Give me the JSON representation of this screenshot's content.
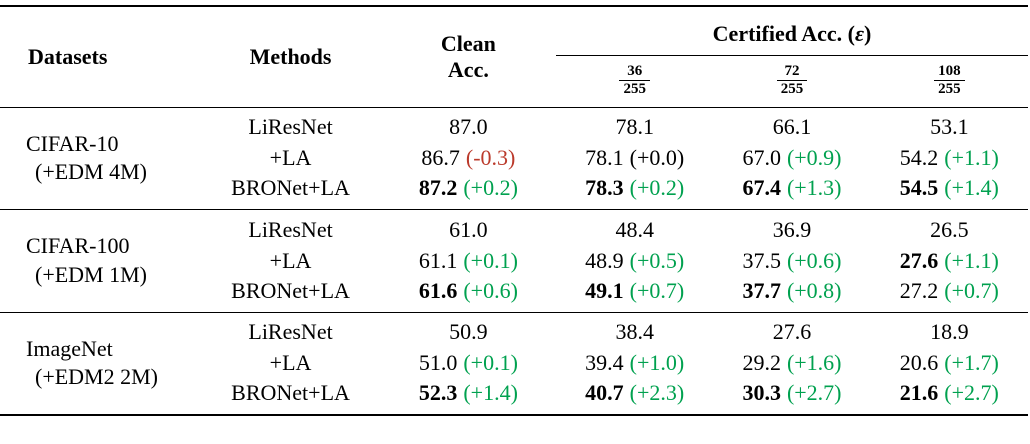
{
  "colors": {
    "green": "#00a14f",
    "red": "#bb3a2b",
    "rule": "#000000"
  },
  "header": {
    "datasets": "Datasets",
    "methods": "Methods",
    "clean_line1": "Clean",
    "clean_line2": "Acc.",
    "certified": {
      "prefix": "Certified Acc. (",
      "epsilon_symbol": "ε",
      "suffix": ")"
    },
    "epsilons": [
      {
        "num": "36",
        "den": "255"
      },
      {
        "num": "72",
        "den": "255"
      },
      {
        "num": "108",
        "den": "255"
      }
    ]
  },
  "groups": [
    {
      "dataset_line1": "CIFAR-10",
      "dataset_line2": "(+EDM 4M)",
      "rows": [
        {
          "method": "LiResNet",
          "cells": [
            {
              "v": "87.0"
            },
            {
              "v": "78.1"
            },
            {
              "v": "66.1"
            },
            {
              "v": "53.1"
            }
          ]
        },
        {
          "method": "+LA",
          "cells": [
            {
              "v": "86.7",
              "d": "(-0.3)",
              "c": "red"
            },
            {
              "v": "78.1",
              "d": "(+0.0)",
              "c": "plain"
            },
            {
              "v": "67.0",
              "d": "(+0.9)",
              "c": "green"
            },
            {
              "v": "54.2",
              "d": "(+1.1)",
              "c": "green"
            }
          ]
        },
        {
          "method": "BRONet+LA",
          "cells": [
            {
              "v": "87.2",
              "bold": true,
              "d": "(+0.2)",
              "c": "green"
            },
            {
              "v": "78.3",
              "bold": true,
              "d": "(+0.2)",
              "c": "green"
            },
            {
              "v": "67.4",
              "bold": true,
              "d": "(+1.3)",
              "c": "green"
            },
            {
              "v": "54.5",
              "bold": true,
              "d": "(+1.4)",
              "c": "green"
            }
          ]
        }
      ]
    },
    {
      "dataset_line1": "CIFAR-100",
      "dataset_line2": "(+EDM 1M)",
      "rows": [
        {
          "method": "LiResNet",
          "cells": [
            {
              "v": "61.0"
            },
            {
              "v": "48.4"
            },
            {
              "v": "36.9"
            },
            {
              "v": "26.5"
            }
          ]
        },
        {
          "method": "+LA",
          "cells": [
            {
              "v": "61.1",
              "d": "(+0.1)",
              "c": "green"
            },
            {
              "v": "48.9",
              "d": "(+0.5)",
              "c": "green"
            },
            {
              "v": "37.5",
              "d": "(+0.6)",
              "c": "green"
            },
            {
              "v": "27.6",
              "bold": true,
              "d": "(+1.1)",
              "c": "green"
            }
          ]
        },
        {
          "method": "BRONet+LA",
          "cells": [
            {
              "v": "61.6",
              "bold": true,
              "d": "(+0.6)",
              "c": "green"
            },
            {
              "v": "49.1",
              "bold": true,
              "d": "(+0.7)",
              "c": "green"
            },
            {
              "v": "37.7",
              "bold": true,
              "d": "(+0.8)",
              "c": "green"
            },
            {
              "v": "27.2",
              "d": "(+0.7)",
              "c": "green"
            }
          ]
        }
      ]
    },
    {
      "dataset_line1": "ImageNet",
      "dataset_line2": "(+EDM2 2M)",
      "rows": [
        {
          "method": "LiResNet",
          "cells": [
            {
              "v": "50.9"
            },
            {
              "v": "38.4"
            },
            {
              "v": "27.6"
            },
            {
              "v": "18.9"
            }
          ]
        },
        {
          "method": "+LA",
          "cells": [
            {
              "v": "51.0",
              "d": "(+0.1)",
              "c": "green"
            },
            {
              "v": "39.4",
              "d": "(+1.0)",
              "c": "green"
            },
            {
              "v": "29.2",
              "d": "(+1.6)",
              "c": "green"
            },
            {
              "v": "20.6",
              "d": "(+1.7)",
              "c": "green"
            }
          ]
        },
        {
          "method": "BRONet+LA",
          "cells": [
            {
              "v": "52.3",
              "bold": true,
              "d": "(+1.4)",
              "c": "green"
            },
            {
              "v": "40.7",
              "bold": true,
              "d": "(+2.3)",
              "c": "green"
            },
            {
              "v": "30.3",
              "bold": true,
              "d": "(+2.7)",
              "c": "green"
            },
            {
              "v": "21.6",
              "bold": true,
              "d": "(+2.7)",
              "c": "green"
            }
          ]
        }
      ]
    }
  ]
}
